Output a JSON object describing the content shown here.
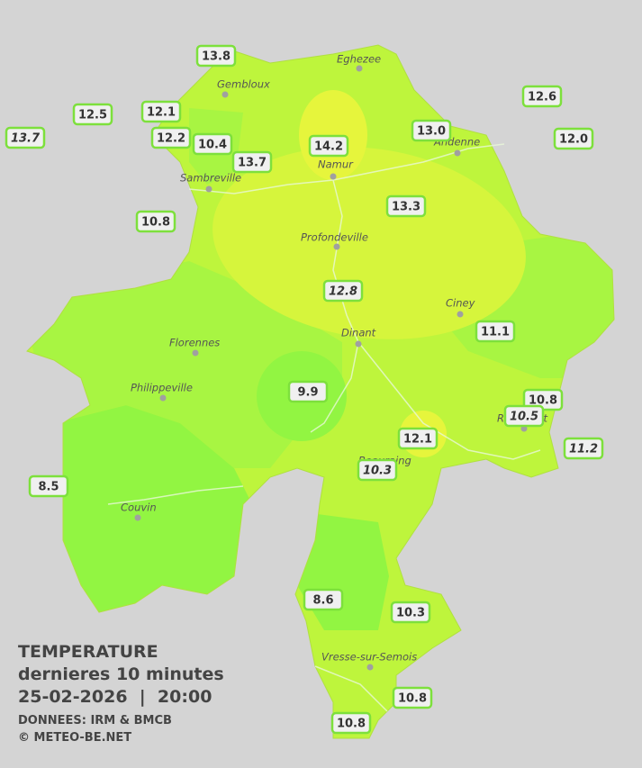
{
  "map": {
    "cities": [
      "Eghezee",
      "Gembloux",
      "Andenne",
      "Sambreville",
      "Namur",
      "Profondeville",
      "Ciney",
      "Dinant",
      "Florennes",
      "Philippeville",
      "Rochefort",
      "Beauraing",
      "Couvin",
      "Vresse-sur-Semois"
    ],
    "stations": [
      {
        "value": "13.8",
        "italic": false
      },
      {
        "value": "12.5",
        "italic": false
      },
      {
        "value": "12.1",
        "italic": false
      },
      {
        "value": "13.7",
        "italic": true
      },
      {
        "value": "12.2",
        "italic": false
      },
      {
        "value": "10.4",
        "italic": false
      },
      {
        "value": "13.7",
        "italic": false
      },
      {
        "value": "14.2",
        "italic": false
      },
      {
        "value": "13.0",
        "italic": false
      },
      {
        "value": "12.6",
        "italic": false
      },
      {
        "value": "12.0",
        "italic": false
      },
      {
        "value": "13.3",
        "italic": false
      },
      {
        "value": "10.8",
        "italic": false
      },
      {
        "value": "12.8",
        "italic": true
      },
      {
        "value": "11.1",
        "italic": false
      },
      {
        "value": "9.9",
        "italic": false
      },
      {
        "value": "10.8",
        "italic": false
      },
      {
        "value": "10.5",
        "italic": true
      },
      {
        "value": "12.1",
        "italic": false
      },
      {
        "value": "11.2",
        "italic": true
      },
      {
        "value": "10.3",
        "italic": true
      },
      {
        "value": "8.5",
        "italic": false
      },
      {
        "value": "8.6",
        "italic": false
      },
      {
        "value": "10.3",
        "italic": false
      },
      {
        "value": "10.8",
        "italic": false
      },
      {
        "value": "10.8",
        "italic": false
      }
    ]
  },
  "legend": {
    "title": "TEMPERATURE",
    "subtitle": "dernieres 10 minutes",
    "datetime": "25-02-2026  |  20:00",
    "source": "DONNEES: IRM & BMCB",
    "copyright": "© METEO-BE.NET"
  }
}
